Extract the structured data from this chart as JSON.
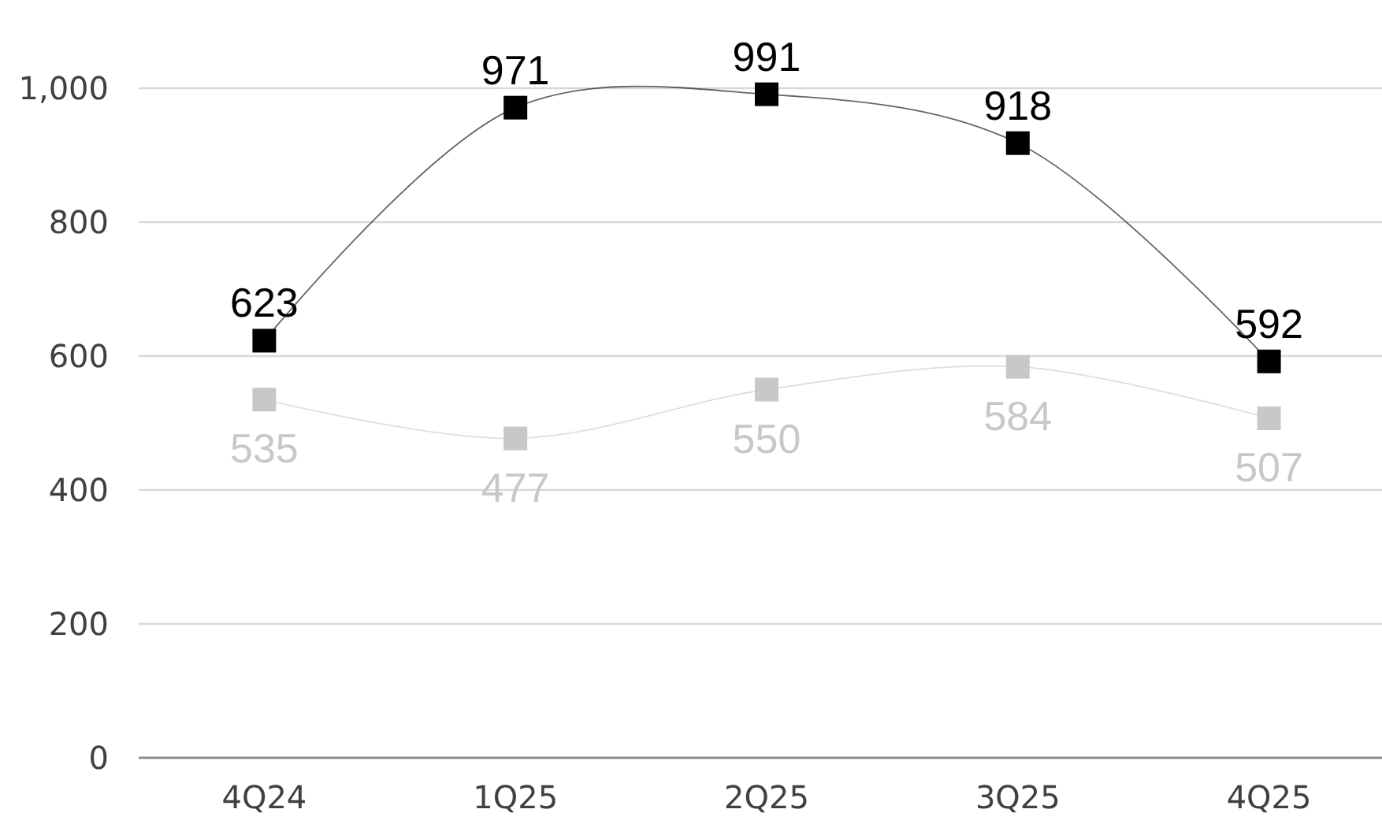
{
  "chart_data": {
    "type": "line",
    "categories": [
      "4Q24",
      "1Q25",
      "2Q25",
      "3Q25",
      "4Q25"
    ],
    "series": [
      {
        "color": "#000000",
        "values": [
          623,
          971,
          991,
          918,
          592
        ]
      },
      {
        "color": "#c8c8c8",
        "values": [
          535,
          477,
          550,
          584,
          507
        ]
      }
    ],
    "ylim": [
      0,
      1000
    ],
    "yticks": [
      0,
      200,
      400,
      600,
      800,
      {
        "value": 1000,
        "label": "1,000"
      }
    ],
    "grid": "y",
    "marker": "square",
    "line_style": "solid",
    "data_labels": true
  }
}
